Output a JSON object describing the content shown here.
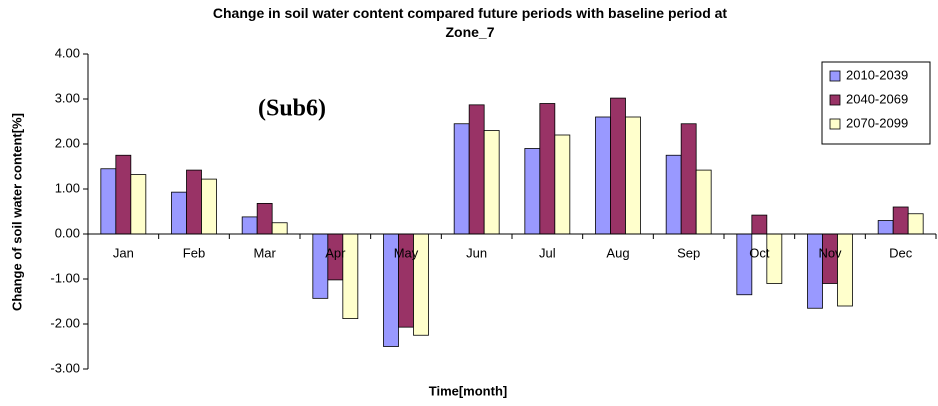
{
  "chart_data": {
    "type": "bar",
    "title": "Change in soil water content compared future periods with baseline period at Zone_7",
    "annotation": "(Sub6)",
    "x_label": "Time[month]",
    "y_label": "Change of soil water content[%]",
    "categories": [
      "Jan",
      "Feb",
      "Mar",
      "Apr",
      "May",
      "Jun",
      "Jul",
      "Aug",
      "Sep",
      "Oct",
      "Nov",
      "Dec"
    ],
    "series": [
      {
        "name": "2010-2039",
        "color": "#9999ff",
        "values": [
          1.45,
          0.93,
          0.38,
          -1.43,
          -2.5,
          2.45,
          1.9,
          2.6,
          1.75,
          -1.35,
          -1.65,
          0.3
        ]
      },
      {
        "name": "2040-2069",
        "color": "#993366",
        "values": [
          1.75,
          1.42,
          0.68,
          -1.02,
          -2.07,
          2.87,
          2.9,
          3.02,
          2.45,
          0.42,
          -1.1,
          0.6
        ]
      },
      {
        "name": "2070-2099",
        "color": "#ffffcc",
        "values": [
          1.32,
          1.22,
          0.25,
          -1.88,
          -2.25,
          2.3,
          2.2,
          2.6,
          1.42,
          -1.1,
          -1.6,
          0.45
        ]
      }
    ],
    "ylim": [
      -3,
      4
    ],
    "yticks": [
      {
        "value": -3,
        "label": "-3.00"
      },
      {
        "value": -2,
        "label": "-2.00"
      },
      {
        "value": -1,
        "label": "-1.00"
      },
      {
        "value": 0,
        "label": "0.00"
      },
      {
        "value": 1,
        "label": "1.00"
      },
      {
        "value": 2,
        "label": "2.00"
      },
      {
        "value": 3,
        "label": "3.00"
      },
      {
        "value": 4,
        "label": "4.00"
      }
    ],
    "legend": "top-right",
    "grid": false
  }
}
